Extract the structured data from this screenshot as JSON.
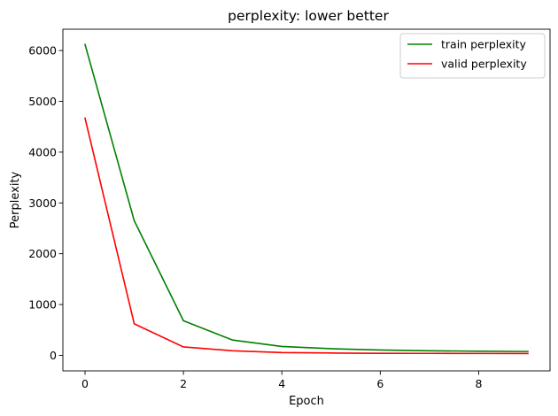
{
  "chart_data": {
    "type": "line",
    "title": "perplexity: lower better",
    "xlabel": "Epoch",
    "ylabel": "Perplexity",
    "xlim": [
      -0.45,
      9.45
    ],
    "ylim": [
      -306,
      6420
    ],
    "xticks": [
      0,
      2,
      4,
      6,
      8
    ],
    "yticks": [
      0,
      1000,
      2000,
      3000,
      4000,
      5000,
      6000
    ],
    "grid": false,
    "legend_position": "top-right",
    "x": [
      0,
      1,
      2,
      3,
      4,
      5,
      6,
      7,
      8,
      9
    ],
    "series": [
      {
        "name": "train perplexity",
        "color": "#008000",
        "values": [
          6120,
          2650,
          680,
          300,
          175,
          130,
          105,
          90,
          80,
          75
        ]
      },
      {
        "name": "valid perplexity",
        "color": "#ff0000",
        "values": [
          4670,
          620,
          165,
          90,
          55,
          45,
          40,
          38,
          36,
          35
        ]
      }
    ]
  }
}
